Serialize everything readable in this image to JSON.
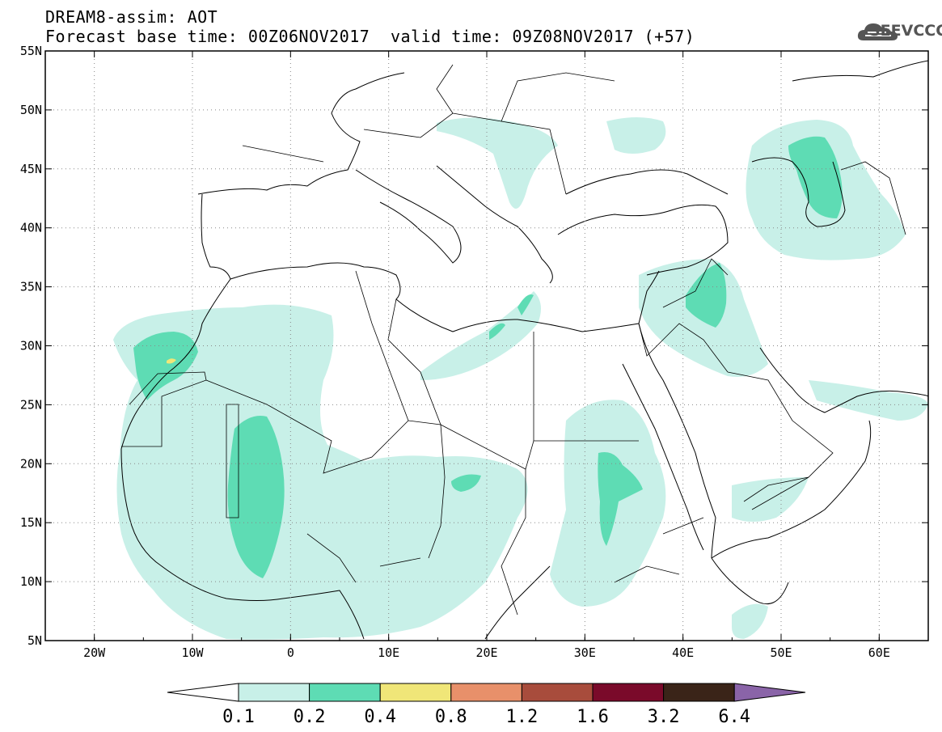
{
  "header": {
    "line1": "DREAM8-assim: AOT",
    "line2": "Forecast base time: 00Z06NOV2017",
    "line3": "valid time: 09Z08NOV2017 (+57)"
  },
  "logo": {
    "text": "SEEVCCC",
    "icon": "cloud-icon"
  },
  "map": {
    "lon_range": [
      -25,
      65
    ],
    "lat_range": [
      5,
      55
    ],
    "lat_ticks": [
      "55N",
      "50N",
      "45N",
      "40N",
      "35N",
      "30N",
      "25N",
      "20N",
      "15N",
      "10N",
      "5N"
    ],
    "lon_ticks": [
      "20W",
      "10W",
      "0",
      "10E",
      "20E",
      "30E",
      "40E",
      "50E",
      "60E"
    ]
  },
  "colorbar": {
    "labels": [
      "0.1",
      "0.2",
      "0.4",
      "0.8",
      "1.2",
      "1.6",
      "3.2",
      "6.4"
    ],
    "colors": [
      "#ffffff",
      "#c8f0e8",
      "#5edcb4",
      "#f0e678",
      "#e8906a",
      "#a84c3c",
      "#7a0a2a",
      "#3a2418",
      "#8a64a8"
    ]
  }
}
